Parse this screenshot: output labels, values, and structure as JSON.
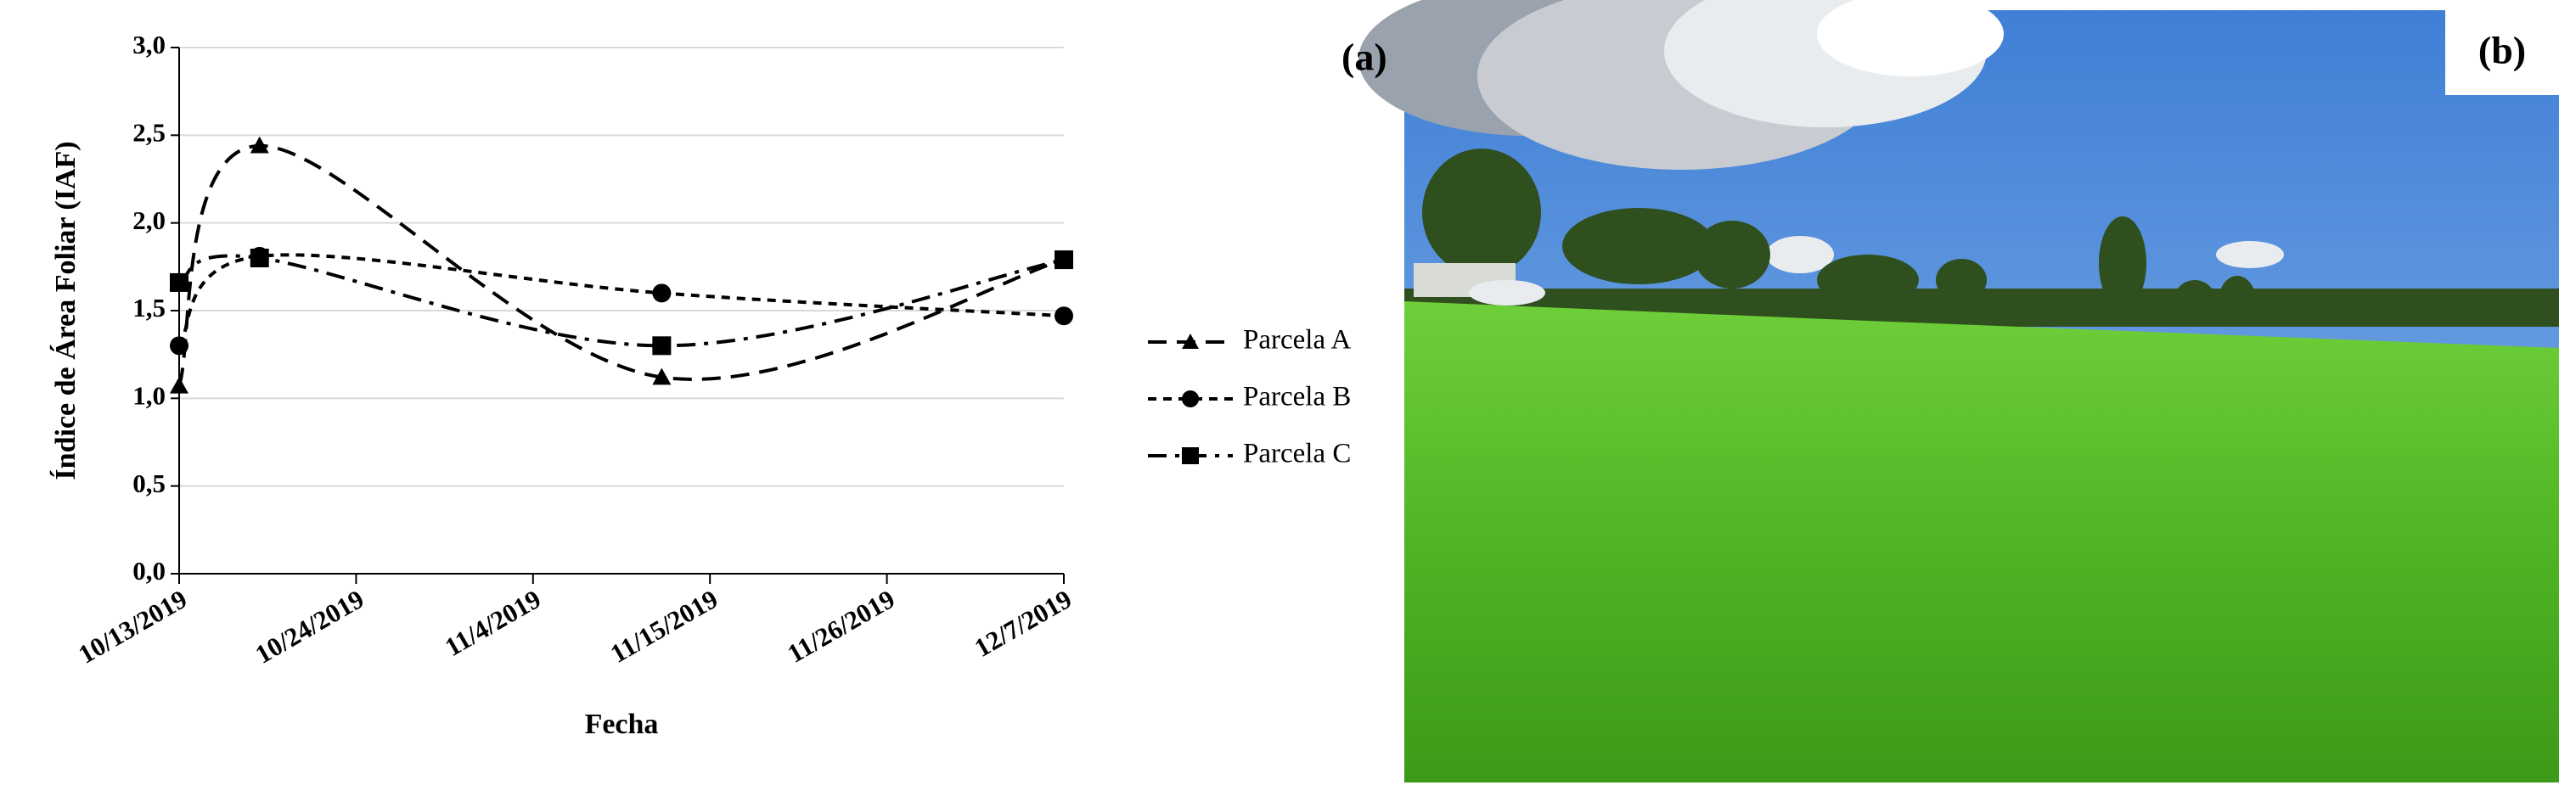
{
  "chart_data": {
    "type": "line",
    "panel_label": "(a)",
    "photo_label": "(b)",
    "xlabel": "Fecha",
    "ylabel": "Índice de Área Foliar (IAF)",
    "x": [
      "10/13/2019",
      "10/18/2019",
      "11/12/2019",
      "12/7/2019"
    ],
    "xlim": [
      "10/13/2019",
      "12/7/2019"
    ],
    "xticks": [
      "10/13/2019",
      "10/24/2019",
      "11/4/2019",
      "11/15/2019",
      "11/26/2019",
      "12/7/2019"
    ],
    "ylim": [
      0,
      3
    ],
    "yticks": [
      {
        "value": 0,
        "label": "0,0"
      },
      {
        "value": 0.5,
        "label": "0,5"
      },
      {
        "value": 1,
        "label": "1,0"
      },
      {
        "value": 1.5,
        "label": "1,5"
      },
      {
        "value": 2,
        "label": "2,0"
      },
      {
        "value": 2.5,
        "label": "2,5"
      },
      {
        "value": 3,
        "label": "3,0"
      }
    ],
    "grid": true,
    "legend": "right",
    "series": [
      {
        "name": "Parcela A",
        "color": "#000000",
        "marker": "triangle",
        "dash": "dashed",
        "values": [
          1.07,
          2.44,
          1.12,
          1.79
        ]
      },
      {
        "name": "Parcela B",
        "color": "#000000",
        "marker": "circle",
        "dash": "dotted",
        "values": [
          1.3,
          1.81,
          1.6,
          1.47
        ]
      },
      {
        "name": "Parcela C",
        "color": "#000000",
        "marker": "square",
        "dash": "dashdot",
        "values": [
          1.66,
          1.8,
          1.3,
          1.79
        ]
      }
    ]
  }
}
